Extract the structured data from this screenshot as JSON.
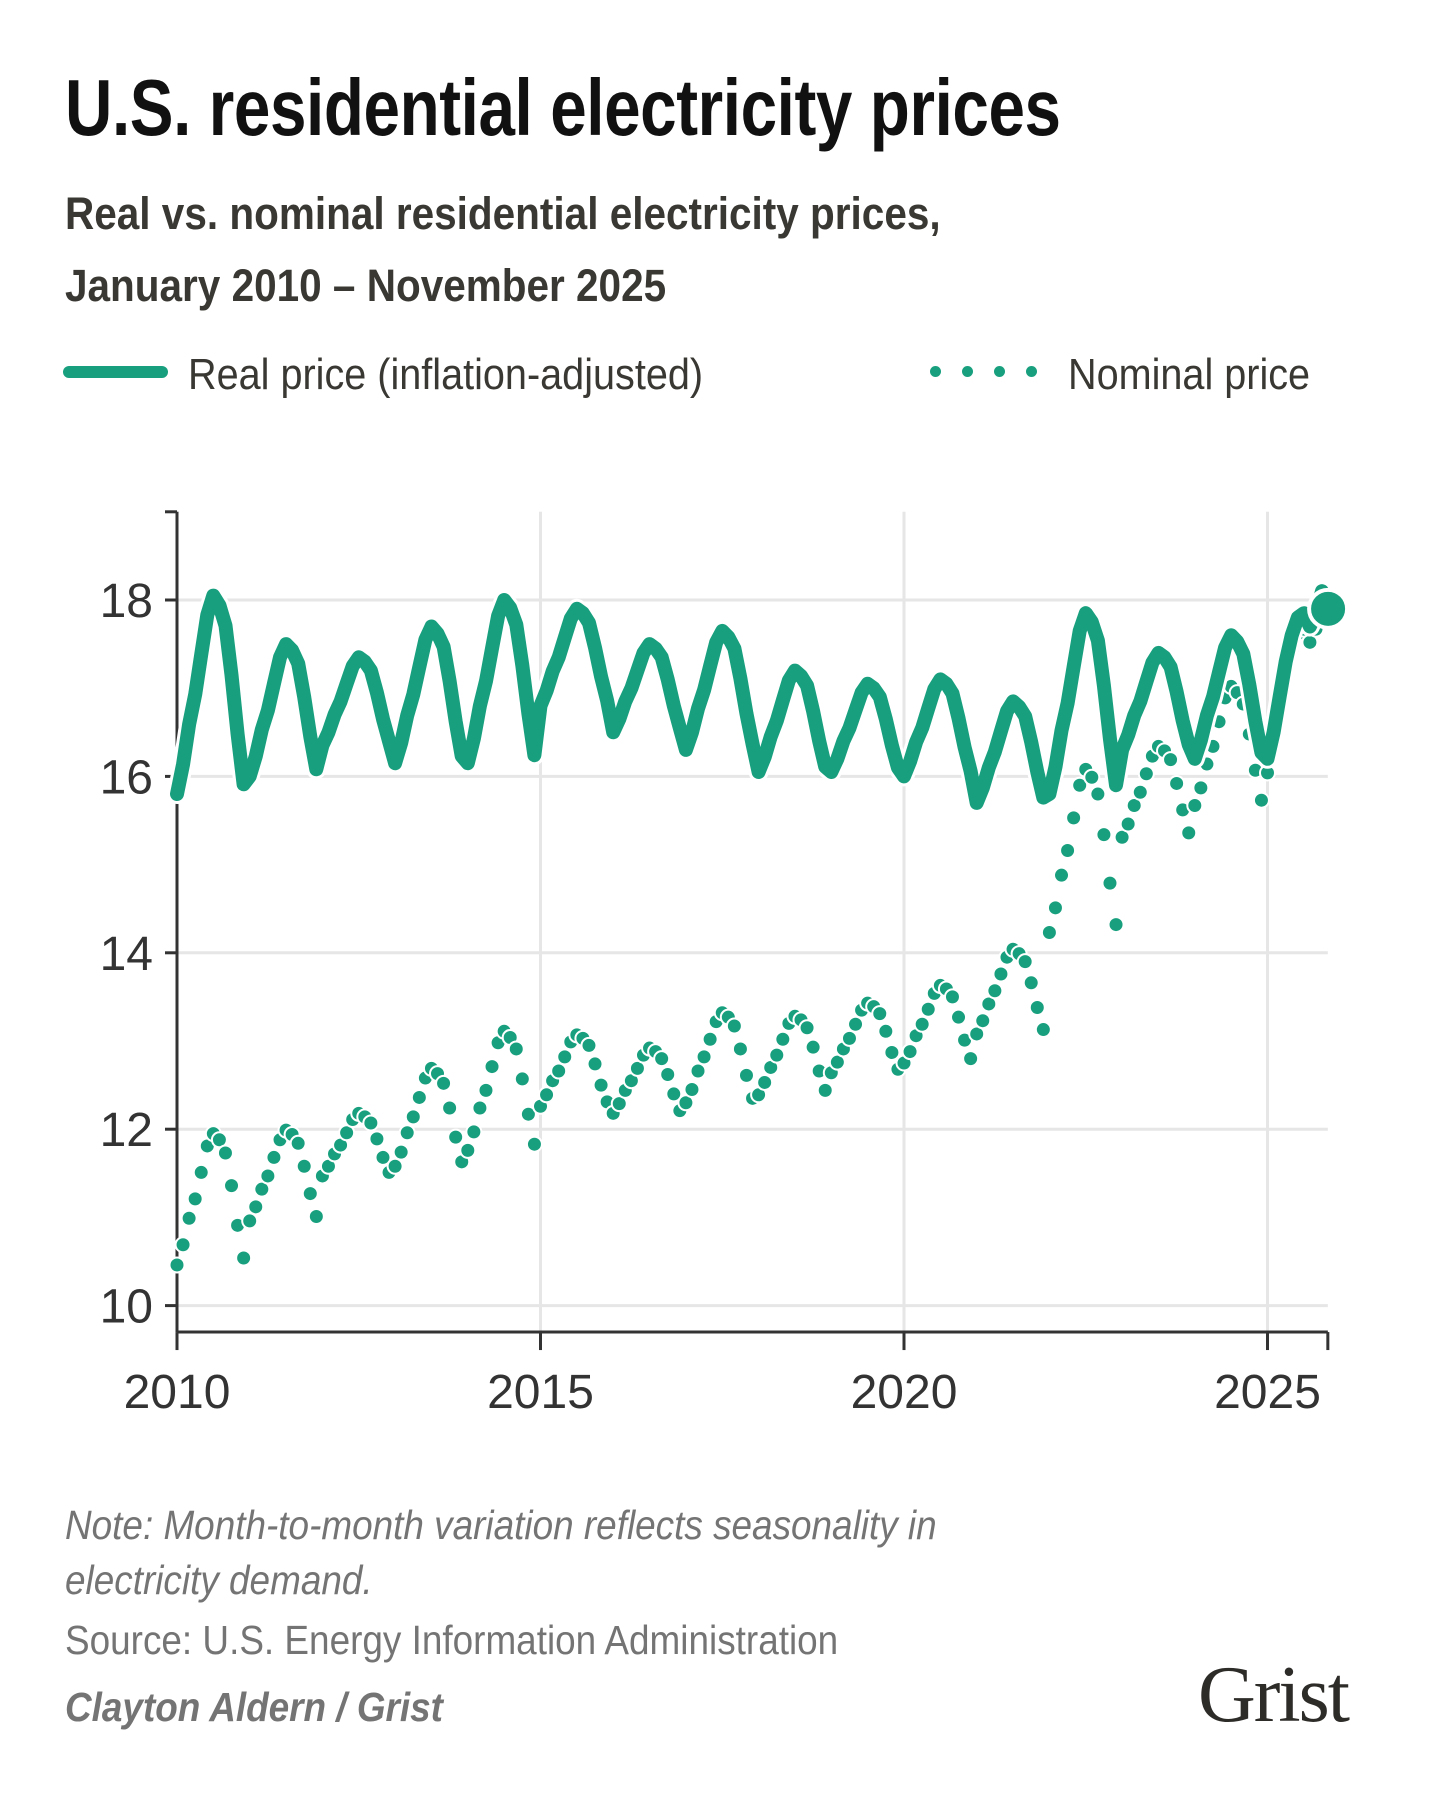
{
  "title": "U.S. residential electricity prices",
  "subtitle_line1": "Real vs. nominal residential electricity prices,",
  "subtitle_line2": "January 2010 – November 2025",
  "legend": {
    "real": "Real price (inflation-adjusted)",
    "nominal": "Nominal price"
  },
  "note_line1": "Note: Month-to-month variation reflects seasonality in",
  "note_line2": "electricity demand.",
  "source": "Source: U.S. Energy Information Administration",
  "credit": "Clayton Aldern / Grist",
  "logo": "Grist",
  "colors": {
    "series": "#18a07e",
    "grid": "#e6e6e6",
    "axis": "#333333"
  },
  "chart_data": {
    "type": "line",
    "x_start": "2010-01",
    "x_end": "2025-11",
    "frequency": "monthly",
    "xlim": [
      2010,
      2025.83
    ],
    "ylim": [
      9.7,
      19
    ],
    "x_ticks": [
      {
        "value": 2010,
        "label": "2010"
      },
      {
        "value": 2015,
        "label": "2015"
      },
      {
        "value": 2020,
        "label": "2020"
      },
      {
        "value": 2025,
        "label": "2025"
      }
    ],
    "y_ticks": [
      {
        "value": 10,
        "label": "10"
      },
      {
        "value": 12,
        "label": "12"
      },
      {
        "value": 14,
        "label": "14"
      },
      {
        "value": 16,
        "label": "16"
      },
      {
        "value": 18,
        "label": "18"
      }
    ],
    "grid": true,
    "legend_position": "top",
    "series": [
      {
        "name": "Real price (inflation-adjusted)",
        "style": "solid-line",
        "values": [
          15.8,
          16.14,
          16.59,
          16.93,
          17.38,
          17.83,
          18.05,
          17.94,
          17.71,
          17.15,
          16.48,
          15.91,
          16.0,
          16.23,
          16.53,
          16.75,
          17.05,
          17.35,
          17.5,
          17.43,
          17.28,
          16.9,
          16.45,
          16.08,
          16.35,
          16.5,
          16.7,
          16.85,
          17.05,
          17.25,
          17.35,
          17.3,
          17.2,
          16.95,
          16.65,
          16.4,
          16.15,
          16.38,
          16.69,
          16.93,
          17.24,
          17.55,
          17.7,
          17.62,
          17.47,
          17.08,
          16.62,
          16.23,
          16.15,
          16.43,
          16.8,
          17.08,
          17.45,
          17.82,
          18.0,
          17.91,
          17.72,
          17.26,
          16.71,
          16.24,
          16.8,
          16.97,
          17.19,
          17.35,
          17.57,
          17.79,
          17.9,
          17.85,
          17.74,
          17.46,
          17.13,
          16.86,
          16.5,
          16.65,
          16.85,
          17.0,
          17.2,
          17.4,
          17.5,
          17.45,
          17.35,
          17.1,
          16.8,
          16.55,
          16.3,
          16.5,
          16.77,
          16.98,
          17.25,
          17.52,
          17.65,
          17.58,
          17.45,
          17.11,
          16.71,
          16.37,
          16.05,
          16.22,
          16.45,
          16.63,
          16.86,
          17.09,
          17.2,
          17.14,
          17.03,
          16.74,
          16.4,
          16.11,
          16.05,
          16.2,
          16.4,
          16.55,
          16.75,
          16.95,
          17.05,
          17.0,
          16.9,
          16.65,
          16.35,
          16.1,
          16.0,
          16.17,
          16.39,
          16.55,
          16.77,
          16.99,
          17.1,
          17.05,
          16.94,
          16.66,
          16.33,
          16.06,
          15.7,
          15.87,
          16.1,
          16.28,
          16.51,
          16.74,
          16.85,
          16.79,
          16.68,
          16.39,
          16.05,
          15.76,
          15.8,
          16.11,
          16.52,
          16.83,
          17.24,
          17.65,
          17.85,
          17.75,
          17.54,
          17.03,
          16.42,
          15.9,
          16.3,
          16.47,
          16.69,
          16.85,
          17.07,
          17.29,
          17.4,
          17.35,
          17.24,
          16.96,
          16.63,
          16.36,
          16.2,
          16.41,
          16.69,
          16.9,
          17.18,
          17.46,
          17.6,
          17.53,
          17.39,
          17.04,
          16.62,
          16.27,
          16.2,
          16.5,
          16.9,
          17.3,
          17.6,
          17.8,
          17.85,
          17.7,
          17.85,
          18.1,
          17.9
        ]
      },
      {
        "name": "Nominal price",
        "style": "dotted",
        "values": [
          10.46,
          10.69,
          10.99,
          11.21,
          11.51,
          11.81,
          11.95,
          11.88,
          11.73,
          11.36,
          10.91,
          10.54,
          10.96,
          11.12,
          11.32,
          11.47,
          11.68,
          11.88,
          11.99,
          11.94,
          11.84,
          11.58,
          11.27,
          11.01,
          11.47,
          11.58,
          11.72,
          11.82,
          11.96,
          12.11,
          12.18,
          12.14,
          12.07,
          11.89,
          11.68,
          11.51,
          11.58,
          11.74,
          11.96,
          12.14,
          12.36,
          12.58,
          12.69,
          12.63,
          12.52,
          12.24,
          11.91,
          11.63,
          11.76,
          11.97,
          12.24,
          12.44,
          12.71,
          12.98,
          13.11,
          13.04,
          12.91,
          12.57,
          12.17,
          11.83,
          12.26,
          12.39,
          12.55,
          12.66,
          12.82,
          12.99,
          13.07,
          13.03,
          12.95,
          12.74,
          12.5,
          12.31,
          12.18,
          12.29,
          12.44,
          12.55,
          12.69,
          12.84,
          12.92,
          12.88,
          12.8,
          12.62,
          12.4,
          12.21,
          12.3,
          12.45,
          12.66,
          12.82,
          13.02,
          13.22,
          13.32,
          13.27,
          13.17,
          12.91,
          12.61,
          12.35,
          12.39,
          12.53,
          12.7,
          12.84,
          13.02,
          13.2,
          13.28,
          13.24,
          13.15,
          12.93,
          12.66,
          12.44,
          12.64,
          12.76,
          12.91,
          13.03,
          13.19,
          13.35,
          13.43,
          13.39,
          13.31,
          13.11,
          12.87,
          12.68,
          12.75,
          12.88,
          13.06,
          13.19,
          13.36,
          13.54,
          13.63,
          13.59,
          13.5,
          13.27,
          13.01,
          12.8,
          13.08,
          13.23,
          13.42,
          13.57,
          13.76,
          13.95,
          14.04,
          13.99,
          13.9,
          13.66,
          13.38,
          13.13,
          14.23,
          14.51,
          14.88,
          15.16,
          15.53,
          15.9,
          16.08,
          15.99,
          15.8,
          15.34,
          14.79,
          14.32,
          15.31,
          15.46,
          15.67,
          15.82,
          16.03,
          16.23,
          16.34,
          16.29,
          16.19,
          15.92,
          15.62,
          15.36,
          15.67,
          15.87,
          16.14,
          16.34,
          16.62,
          16.89,
          17.02,
          16.95,
          16.82,
          16.48,
          16.07,
          15.73,
          16.04,
          16.34,
          16.73,
          17.13,
          17.43,
          17.62,
          17.67,
          17.52,
          17.67,
          17.92,
          17.9
        ]
      }
    ]
  }
}
